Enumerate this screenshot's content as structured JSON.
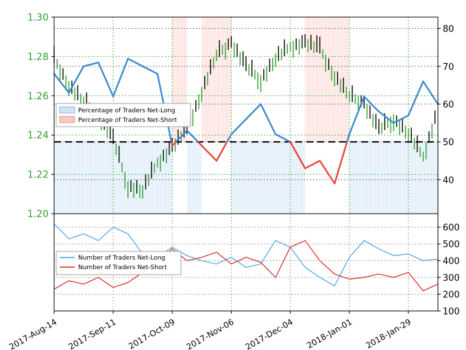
{
  "chart_data": [
    {
      "panel": "price-sentiment",
      "type": "line",
      "x_dates": [
        "2017-08-14",
        "2017-08-21",
        "2017-08-28",
        "2017-09-04",
        "2017-09-11",
        "2017-09-18",
        "2017-09-25",
        "2017-10-02",
        "2017-10-09",
        "2017-10-16",
        "2017-10-23",
        "2017-10-30",
        "2017-11-06",
        "2017-11-13",
        "2017-11-20",
        "2017-11-27",
        "2017-12-04",
        "2017-12-11",
        "2017-12-18",
        "2017-12-25",
        "2018-01-01",
        "2018-01-08",
        "2018-01-15",
        "2018-01-22",
        "2018-01-29",
        "2018-02-05",
        "2018-02-12"
      ],
      "x_tick_labels": [
        "2017-Aug-14",
        "2017-Sep-11",
        "2017-Oct-09",
        "2017-Nov-06",
        "2017-Dec-04",
        "2018-Jan-01",
        "2018-Jan-29"
      ],
      "price": {
        "axis": "left",
        "ylim": [
          1.2,
          1.3
        ],
        "ticks": [
          "1.20",
          "1.22",
          "1.24",
          "1.26",
          "1.28",
          "1.30"
        ],
        "tick_color": "#2ca02c",
        "values": [
          1.279,
          1.265,
          1.257,
          1.25,
          1.238,
          1.214,
          1.212,
          1.226,
          1.234,
          1.243,
          1.262,
          1.281,
          1.287,
          1.275,
          1.268,
          1.279,
          1.285,
          1.287,
          1.284,
          1.27,
          1.26,
          1.256,
          1.243,
          1.248,
          1.241,
          1.229,
          1.253
        ]
      },
      "sentiment": {
        "axis": "right",
        "ylim": [
          31,
          83
        ],
        "ticks": [
          "40",
          "50",
          "60",
          "70",
          "80"
        ],
        "reference_line": 50,
        "values": [
          68,
          63,
          70,
          71,
          62,
          72,
          70,
          68,
          49,
          53,
          49,
          45,
          52,
          56,
          60,
          52,
          50,
          43,
          45,
          39,
          52,
          62,
          58,
          55,
          57,
          66,
          60
        ]
      },
      "legend": {
        "placement": "upper-left",
        "entries": [
          {
            "label": "Percentage of Traders Net-Long",
            "color": "#4a90d9"
          },
          {
            "label": "Percentage of Traders Net-Short",
            "color": "#e8473e"
          }
        ]
      },
      "grid": true
    },
    {
      "panel": "trader-counts",
      "type": "line",
      "ylim": [
        100,
        680
      ],
      "ticks": [
        "100",
        "200",
        "300",
        "400",
        "500",
        "600"
      ],
      "series": [
        {
          "name": "Number of Traders Net-Long",
          "color": "#4aa3e8",
          "values": [
            620,
            530,
            560,
            520,
            600,
            560,
            440,
            420,
            480,
            430,
            400,
            380,
            420,
            360,
            380,
            520,
            480,
            360,
            300,
            250,
            420,
            520,
            470,
            430,
            440,
            400,
            410
          ]
        },
        {
          "name": "Number of Traders Net-Short",
          "color": "#e02020",
          "values": [
            230,
            280,
            260,
            300,
            240,
            270,
            330,
            390,
            470,
            400,
            420,
            450,
            380,
            420,
            390,
            300,
            480,
            520,
            400,
            320,
            290,
            300,
            320,
            300,
            330,
            220,
            260
          ]
        }
      ],
      "legend": {
        "placement": "upper-left"
      },
      "grid": true
    }
  ]
}
